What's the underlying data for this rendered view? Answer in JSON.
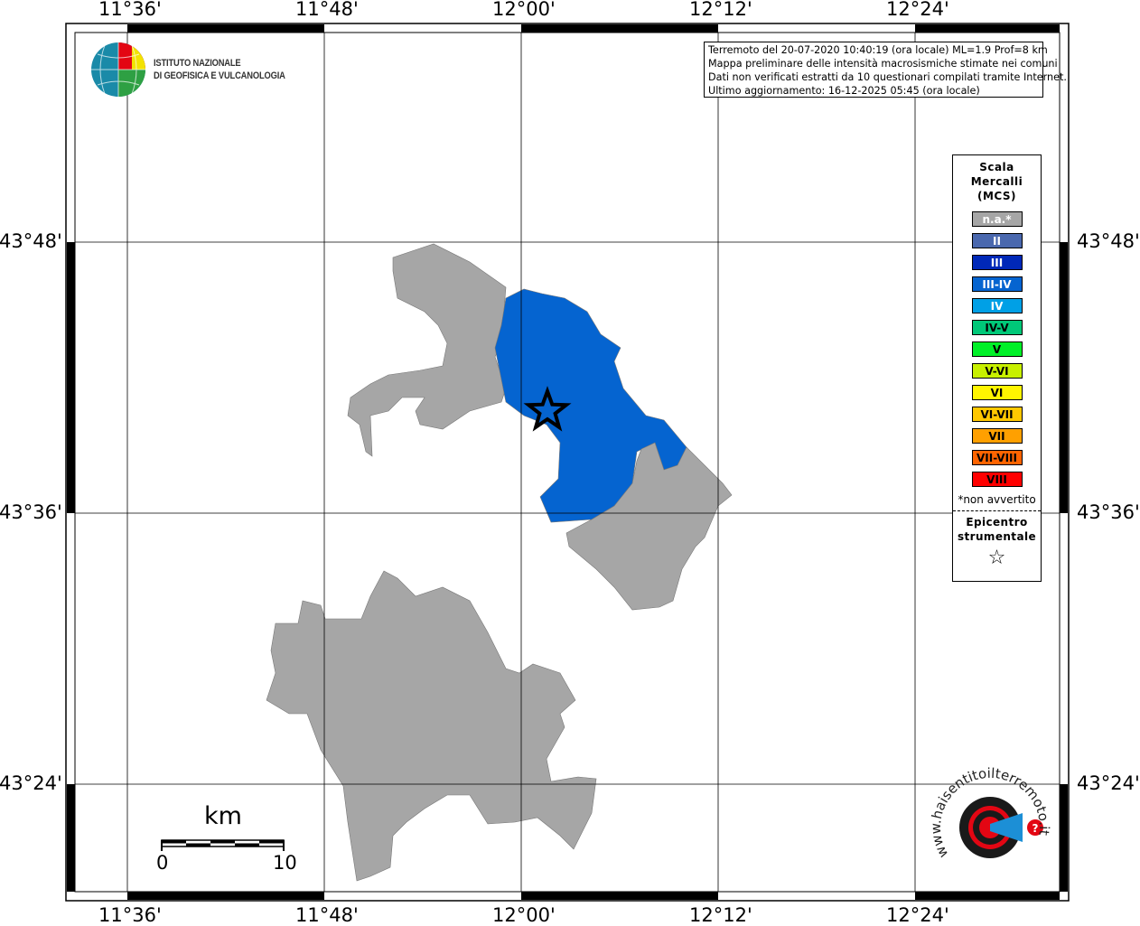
{
  "map": {
    "longitude_ticks": [
      "11°36'",
      "11°48'",
      "12°00'",
      "12°12'",
      "12°24'"
    ],
    "latitude_ticks": [
      "43°48'",
      "43°36'",
      "43°24'"
    ],
    "colors": {
      "not_felt": "#a6a6a6",
      "intensity_III_IV": "#0564d0",
      "grid": "#000000"
    },
    "areas": [
      {
        "name": "north-west-municipality",
        "intensity": "n.a."
      },
      {
        "name": "central-municipality",
        "intensity": "III-IV"
      },
      {
        "name": "south-east-municipality",
        "intensity": "n.a."
      },
      {
        "name": "south-municipality",
        "intensity": "n.a."
      }
    ],
    "epicenter_icon": "star-icon"
  },
  "logo": {
    "line1": "ISTITUTO NAZIONALE",
    "line2": "DI GEOFISICA E VULCANOLOGIA"
  },
  "info": {
    "line1": "Terremoto del 20-07-2020 10:40:19 (ora locale) ML=1.9 Prof=8 km",
    "line2": "Mappa preliminare delle intensità macrosismiche stimate nei comuni",
    "line3": "Dati non verificati estratti da 10 questionari compilati tramite Internet.",
    "line4": "Ultimo aggiornamento: 16-12-2025 05:45 (ora locale)"
  },
  "legend": {
    "title1": "Scala",
    "title2": "Mercalli",
    "title3": "(MCS)",
    "items": [
      {
        "label": "n.a.*",
        "color": "#a6a6a6",
        "text": "#ffffff"
      },
      {
        "label": "II",
        "color": "#4a68ae",
        "text": "#ffffff"
      },
      {
        "label": "III",
        "color": "#0028b8",
        "text": "#ffffff"
      },
      {
        "label": "III-IV",
        "color": "#0564d0",
        "text": "#ffffff"
      },
      {
        "label": "IV",
        "color": "#00a0e6",
        "text": "#ffffff"
      },
      {
        "label": "IV-V",
        "color": "#00c878",
        "text": "#000000"
      },
      {
        "label": "V",
        "color": "#00f028",
        "text": "#000000"
      },
      {
        "label": "V-VI",
        "color": "#c8f000",
        "text": "#000000"
      },
      {
        "label": "VI",
        "color": "#fff500",
        "text": "#000000"
      },
      {
        "label": "VI-VII",
        "color": "#ffc800",
        "text": "#000000"
      },
      {
        "label": "VII",
        "color": "#ffa000",
        "text": "#000000"
      },
      {
        "label": "VII-VIII",
        "color": "#ff6400",
        "text": "#000000"
      },
      {
        "label": "VIII",
        "color": "#ff0000",
        "text": "#000000"
      }
    ],
    "note": "*non avvertito",
    "epicenter1": "Epicentro",
    "epicenter2": "strumentale",
    "epicenter_symbol": "☆"
  },
  "scale_bar": {
    "unit": "km",
    "min": "0",
    "max": "10"
  },
  "badge": {
    "text": "www.haisentitoilterremoto.it"
  }
}
